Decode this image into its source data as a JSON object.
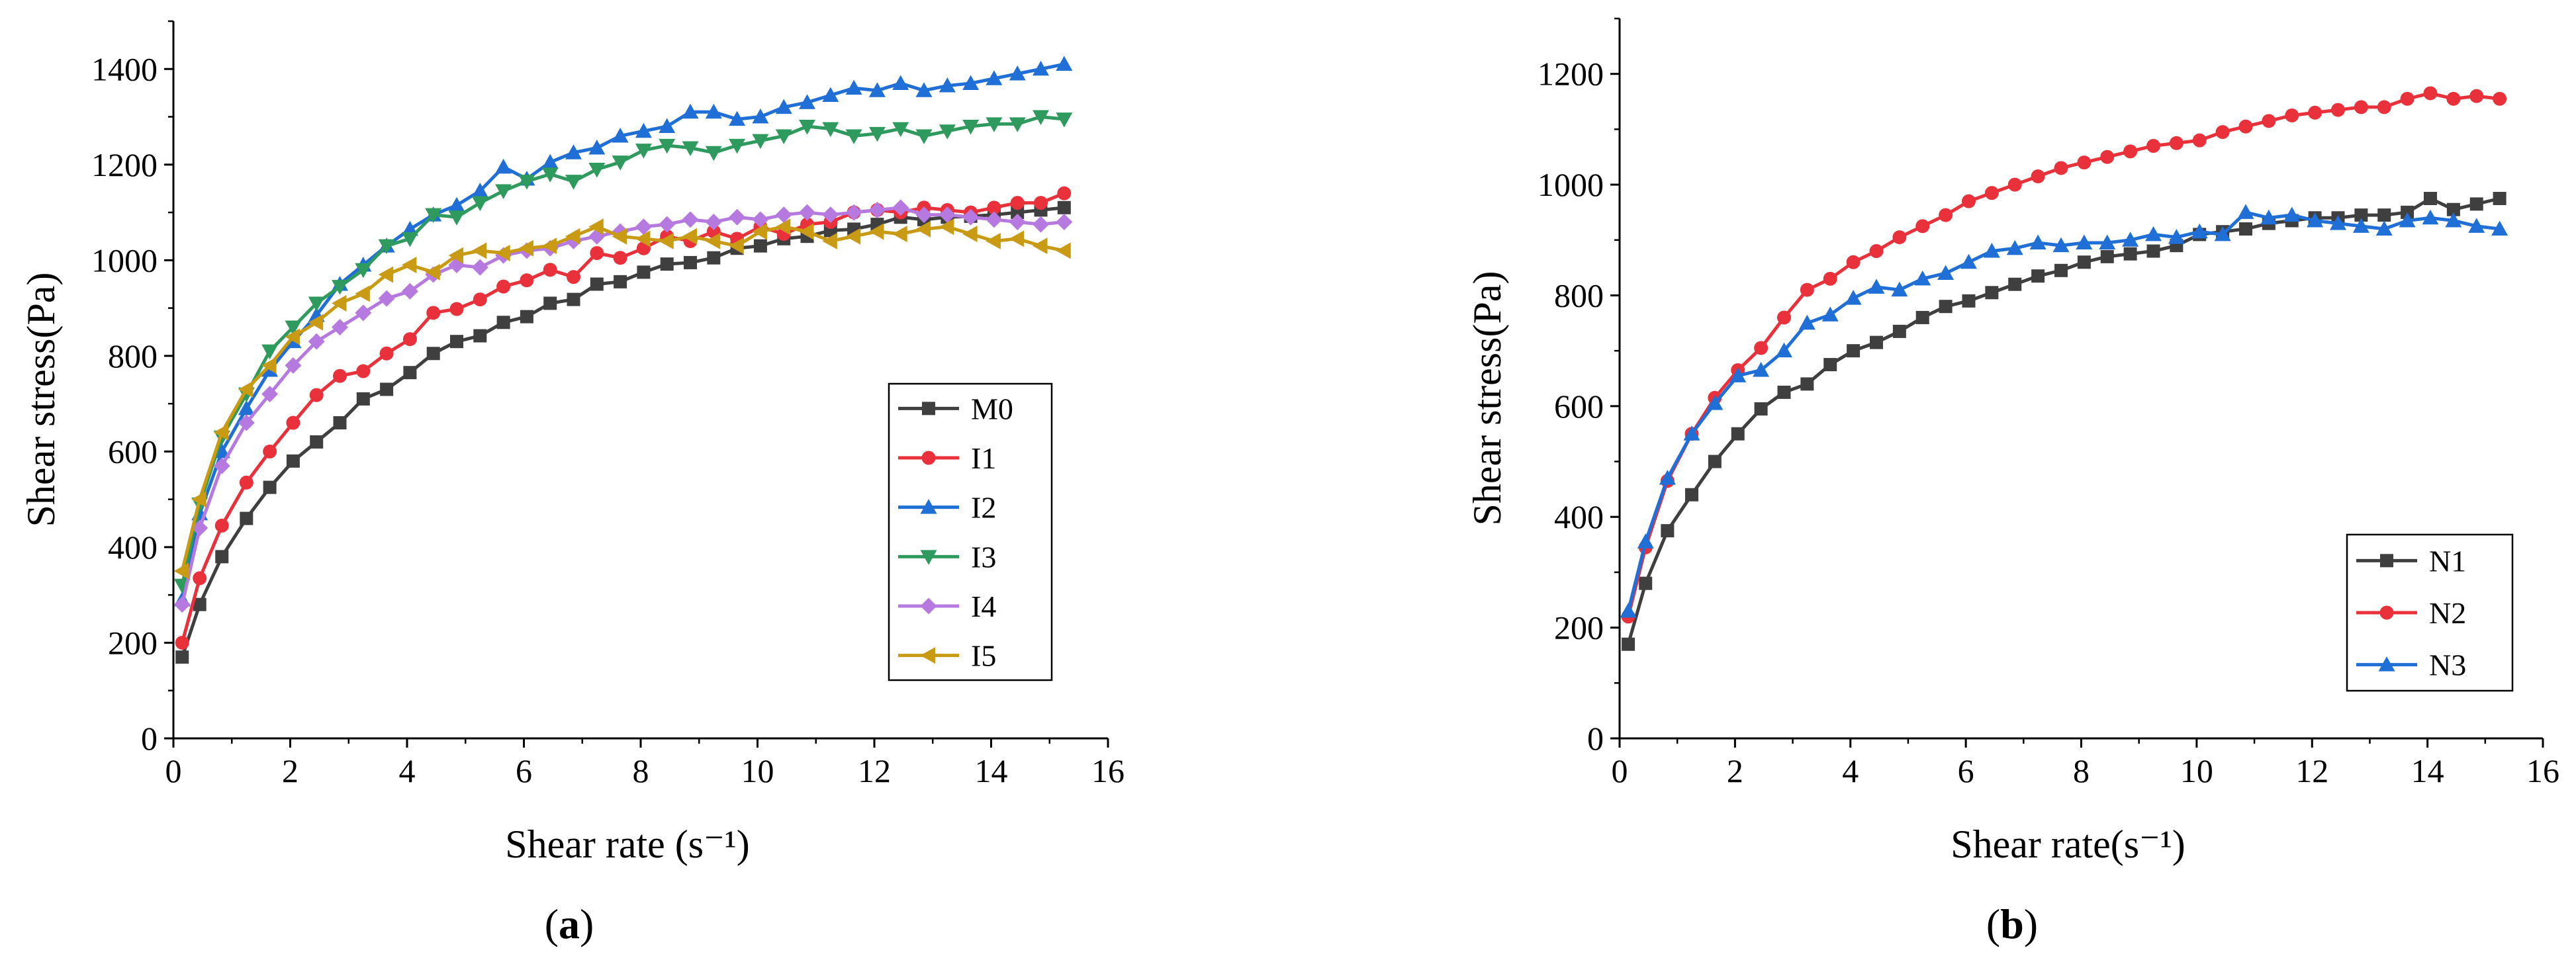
{
  "figure": {
    "panel_labels": [
      {
        "open": "(",
        "letter": "a",
        "close": ")"
      },
      {
        "open": "(",
        "letter": "b",
        "close": ")"
      }
    ]
  },
  "chart_data": [
    {
      "type": "line",
      "panel": "a",
      "title": "",
      "xlabel": "Shear rate (s⁻¹)",
      "ylabel": "Shear stress(Pa)",
      "xlim": [
        0,
        16
      ],
      "ylim": [
        0,
        1500
      ],
      "xticks": [
        0,
        2,
        4,
        6,
        8,
        10,
        12,
        14,
        16
      ],
      "yticks": [
        0,
        200,
        400,
        600,
        800,
        1000,
        1200,
        1400
      ],
      "grid": false,
      "legend_position": "bottom-right",
      "series": [
        {
          "name": "M0",
          "color": "#3f3f3f",
          "marker": "square",
          "x": [
            0.15,
            0.45,
            0.83,
            1.25,
            1.65,
            2.05,
            2.45,
            2.85,
            3.25,
            3.65,
            4.05,
            4.45,
            4.85,
            5.25,
            5.65,
            6.05,
            6.45,
            6.85,
            7.25,
            7.65,
            8.05,
            8.45,
            8.85,
            9.25,
            9.65,
            10.05,
            10.45,
            10.85,
            11.25,
            11.65,
            12.05,
            12.45,
            12.85,
            13.25,
            13.65,
            14.05,
            14.45,
            14.85,
            15.25
          ],
          "y": [
            170,
            280,
            380,
            460,
            525,
            580,
            620,
            660,
            710,
            730,
            765,
            805,
            830,
            842,
            870,
            882,
            910,
            918,
            950,
            955,
            975,
            992,
            995,
            1005,
            1025,
            1030,
            1045,
            1050,
            1062,
            1065,
            1075,
            1090,
            1085,
            1090,
            1092,
            1095,
            1100,
            1105,
            1110
          ]
        },
        {
          "name": "I1",
          "color": "#e8313a",
          "marker": "circle",
          "x": [
            0.15,
            0.45,
            0.83,
            1.25,
            1.65,
            2.05,
            2.45,
            2.85,
            3.25,
            3.65,
            4.05,
            4.45,
            4.85,
            5.25,
            5.65,
            6.05,
            6.45,
            6.85,
            7.25,
            7.65,
            8.05,
            8.45,
            8.85,
            9.25,
            9.65,
            10.05,
            10.45,
            10.85,
            11.25,
            11.65,
            12.05,
            12.45,
            12.85,
            13.25,
            13.65,
            14.05,
            14.45,
            14.85,
            15.25
          ],
          "y": [
            200,
            335,
            445,
            535,
            600,
            660,
            718,
            758,
            768,
            805,
            835,
            890,
            898,
            918,
            945,
            958,
            980,
            965,
            1015,
            1005,
            1025,
            1050,
            1040,
            1060,
            1045,
            1070,
            1055,
            1075,
            1080,
            1100,
            1105,
            1100,
            1110,
            1105,
            1100,
            1110,
            1120,
            1120,
            1140
          ]
        },
        {
          "name": "I2",
          "color": "#1f6fd6",
          "marker": "triangle-up",
          "x": [
            0.15,
            0.45,
            0.83,
            1.25,
            1.65,
            2.05,
            2.45,
            2.85,
            3.25,
            3.65,
            4.05,
            4.45,
            4.85,
            5.25,
            5.65,
            6.05,
            6.45,
            6.85,
            7.25,
            7.65,
            8.05,
            8.45,
            8.85,
            9.25,
            9.65,
            10.05,
            10.45,
            10.85,
            11.25,
            11.65,
            12.05,
            12.45,
            12.85,
            13.25,
            13.65,
            14.05,
            14.45,
            14.85,
            15.25
          ],
          "y": [
            290,
            470,
            600,
            690,
            770,
            830,
            885,
            950,
            990,
            1030,
            1065,
            1095,
            1115,
            1145,
            1195,
            1170,
            1205,
            1225,
            1235,
            1260,
            1270,
            1280,
            1310,
            1310,
            1295,
            1300,
            1320,
            1330,
            1345,
            1360,
            1355,
            1370,
            1355,
            1365,
            1370,
            1380,
            1390,
            1400,
            1410
          ]
        },
        {
          "name": "I3",
          "color": "#2e9a5e",
          "marker": "triangle-down",
          "x": [
            0.15,
            0.45,
            0.83,
            1.25,
            1.65,
            2.05,
            2.45,
            2.85,
            3.25,
            3.65,
            4.05,
            4.45,
            4.85,
            5.25,
            5.65,
            6.05,
            6.45,
            6.85,
            7.25,
            7.65,
            8.05,
            8.45,
            8.85,
            9.25,
            9.65,
            10.05,
            10.45,
            10.85,
            11.25,
            11.65,
            12.05,
            12.45,
            12.85,
            13.25,
            13.65,
            14.05,
            14.45,
            14.85,
            15.25
          ],
          "y": [
            320,
            490,
            630,
            720,
            810,
            860,
            910,
            945,
            980,
            1030,
            1045,
            1095,
            1090,
            1120,
            1145,
            1165,
            1180,
            1165,
            1190,
            1205,
            1230,
            1240,
            1235,
            1225,
            1240,
            1250,
            1260,
            1280,
            1275,
            1260,
            1265,
            1275,
            1260,
            1270,
            1280,
            1285,
            1285,
            1300,
            1295
          ]
        },
        {
          "name": "I4",
          "color": "#b679df",
          "marker": "diamond",
          "x": [
            0.15,
            0.45,
            0.83,
            1.25,
            1.65,
            2.05,
            2.45,
            2.85,
            3.25,
            3.65,
            4.05,
            4.45,
            4.85,
            5.25,
            5.65,
            6.05,
            6.45,
            6.85,
            7.25,
            7.65,
            8.05,
            8.45,
            8.85,
            9.25,
            9.65,
            10.05,
            10.45,
            10.85,
            11.25,
            11.65,
            12.05,
            12.45,
            12.85,
            13.25,
            13.65,
            14.05,
            14.45,
            14.85,
            15.25
          ],
          "y": [
            280,
            440,
            570,
            660,
            720,
            780,
            830,
            860,
            890,
            920,
            935,
            970,
            990,
            985,
            1010,
            1020,
            1025,
            1040,
            1050,
            1060,
            1070,
            1075,
            1085,
            1080,
            1090,
            1085,
            1095,
            1100,
            1095,
            1100,
            1105,
            1110,
            1095,
            1095,
            1090,
            1085,
            1080,
            1075,
            1080
          ]
        },
        {
          "name": "I5",
          "color": "#c99a13",
          "marker": "triangle-left",
          "x": [
            0.15,
            0.45,
            0.83,
            1.25,
            1.65,
            2.05,
            2.45,
            2.85,
            3.25,
            3.65,
            4.05,
            4.45,
            4.85,
            5.25,
            5.65,
            6.05,
            6.45,
            6.85,
            7.25,
            7.65,
            8.05,
            8.45,
            8.85,
            9.25,
            9.65,
            10.05,
            10.45,
            10.85,
            11.25,
            11.65,
            12.05,
            12.45,
            12.85,
            13.25,
            13.65,
            14.05,
            14.45,
            14.85,
            15.25
          ],
          "y": [
            350,
            500,
            640,
            730,
            780,
            840,
            870,
            910,
            930,
            970,
            990,
            975,
            1010,
            1020,
            1015,
            1025,
            1030,
            1050,
            1070,
            1050,
            1045,
            1040,
            1050,
            1040,
            1030,
            1060,
            1070,
            1060,
            1040,
            1050,
            1060,
            1055,
            1065,
            1070,
            1055,
            1040,
            1045,
            1030,
            1020
          ]
        }
      ]
    },
    {
      "type": "line",
      "panel": "b",
      "title": "",
      "xlabel": "Shear rate(s⁻¹)",
      "ylabel": "Shear stress(Pa)",
      "xlim": [
        0,
        16
      ],
      "ylim": [
        0,
        1300
      ],
      "xticks": [
        0,
        2,
        4,
        6,
        8,
        10,
        12,
        14,
        16
      ],
      "yticks": [
        0,
        200,
        400,
        600,
        800,
        1000,
        1200
      ],
      "grid": false,
      "legend_position": "bottom-right",
      "series": [
        {
          "name": "N1",
          "color": "#3f3f3f",
          "marker": "square",
          "x": [
            0.15,
            0.45,
            0.83,
            1.25,
            1.65,
            2.05,
            2.45,
            2.85,
            3.25,
            3.65,
            4.05,
            4.45,
            4.85,
            5.25,
            5.65,
            6.05,
            6.45,
            6.85,
            7.25,
            7.65,
            8.05,
            8.45,
            8.85,
            9.25,
            9.65,
            10.05,
            10.45,
            10.85,
            11.25,
            11.65,
            12.05,
            12.45,
            12.85,
            13.25,
            13.65,
            14.05,
            14.45,
            14.85,
            15.25
          ],
          "y": [
            170,
            280,
            375,
            440,
            500,
            550,
            595,
            625,
            640,
            675,
            700,
            715,
            735,
            760,
            780,
            790,
            805,
            820,
            835,
            845,
            860,
            870,
            875,
            880,
            890,
            910,
            915,
            920,
            930,
            935,
            940,
            940,
            945,
            945,
            950,
            975,
            955,
            965,
            975
          ]
        },
        {
          "name": "N2",
          "color": "#e8313a",
          "marker": "circle",
          "x": [
            0.15,
            0.45,
            0.83,
            1.25,
            1.65,
            2.05,
            2.45,
            2.85,
            3.25,
            3.65,
            4.05,
            4.45,
            4.85,
            5.25,
            5.65,
            6.05,
            6.45,
            6.85,
            7.25,
            7.65,
            8.05,
            8.45,
            8.85,
            9.25,
            9.65,
            10.05,
            10.45,
            10.85,
            11.25,
            11.65,
            12.05,
            12.45,
            12.85,
            13.25,
            13.65,
            14.05,
            14.45,
            14.85,
            15.25
          ],
          "y": [
            220,
            345,
            465,
            550,
            615,
            665,
            705,
            760,
            810,
            830,
            860,
            880,
            905,
            925,
            945,
            970,
            985,
            1000,
            1015,
            1030,
            1040,
            1050,
            1060,
            1070,
            1075,
            1080,
            1095,
            1105,
            1115,
            1125,
            1130,
            1135,
            1140,
            1140,
            1155,
            1165,
            1155,
            1160,
            1155
          ]
        },
        {
          "name": "N3",
          "color": "#1f6fd6",
          "marker": "triangle-up",
          "x": [
            0.15,
            0.45,
            0.83,
            1.25,
            1.65,
            2.05,
            2.45,
            2.85,
            3.25,
            3.65,
            4.05,
            4.45,
            4.85,
            5.25,
            5.65,
            6.05,
            6.45,
            6.85,
            7.25,
            7.65,
            8.05,
            8.45,
            8.85,
            9.25,
            9.65,
            10.05,
            10.45,
            10.85,
            11.25,
            11.65,
            12.05,
            12.45,
            12.85,
            13.25,
            13.65,
            14.05,
            14.45,
            14.85,
            15.25
          ],
          "y": [
            230,
            355,
            470,
            550,
            605,
            655,
            665,
            700,
            750,
            765,
            795,
            815,
            810,
            830,
            840,
            860,
            880,
            885,
            895,
            890,
            895,
            895,
            900,
            910,
            905,
            915,
            910,
            950,
            940,
            945,
            935,
            930,
            925,
            920,
            935,
            940,
            935,
            925,
            920
          ]
        }
      ]
    }
  ]
}
